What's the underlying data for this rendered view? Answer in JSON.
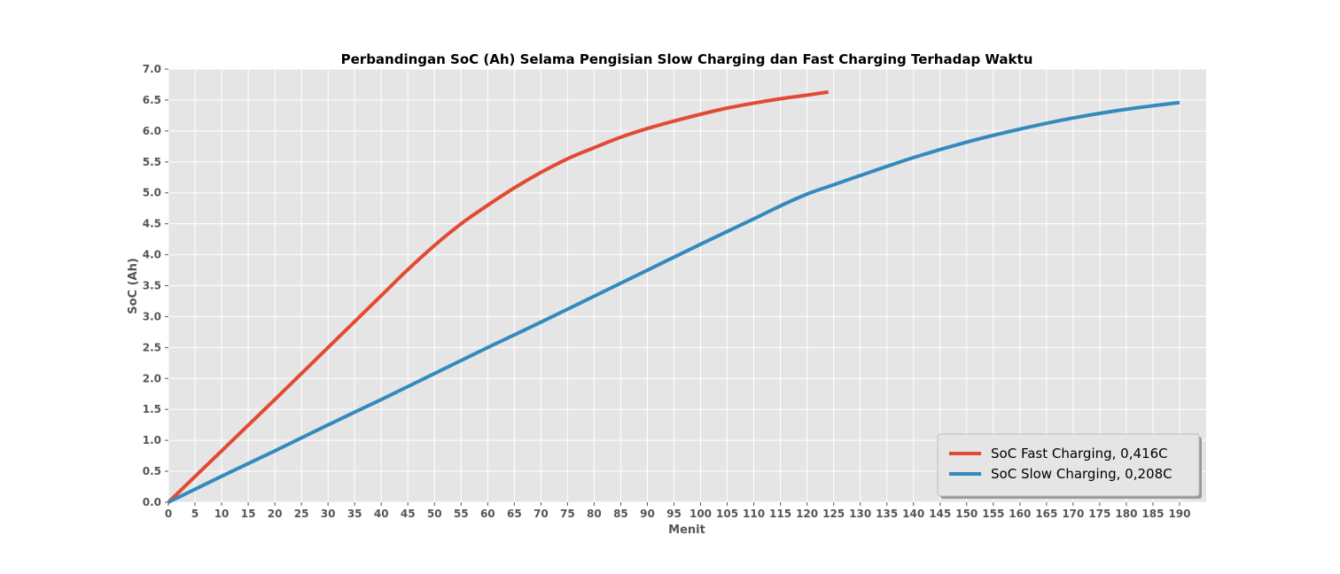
{
  "chart_data": {
    "type": "line",
    "title": "Perbandingan SoC (Ah) Selama Pengisian Slow Charging dan Fast Charging Terhadap Waktu",
    "xlabel": "Menit",
    "ylabel": "SoC (Ah)",
    "xlim": [
      0,
      195
    ],
    "ylim": [
      0,
      7
    ],
    "xticks": [
      "0",
      "5",
      "10",
      "15",
      "20",
      "25",
      "30",
      "35",
      "40",
      "45",
      "50",
      "55",
      "60",
      "65",
      "70",
      "75",
      "80",
      "85",
      "90",
      "95",
      "100",
      "105",
      "110",
      "115",
      "120",
      "125",
      "130",
      "135",
      "140",
      "145",
      "150",
      "155",
      "160",
      "165",
      "170",
      "175",
      "180",
      "185",
      "190"
    ],
    "yticks": [
      "0.0",
      "0.5",
      "1.0",
      "1.5",
      "2.0",
      "2.5",
      "3.0",
      "3.5",
      "4.0",
      "4.5",
      "5.0",
      "5.5",
      "6.0",
      "6.5",
      "7.0"
    ],
    "grid": true,
    "legend_position": "lower-right",
    "series": [
      {
        "name": "SoC Fast Charging, 0,416C",
        "color": "#E24A33",
        "x": [
          0,
          10,
          20,
          30,
          40,
          45,
          50,
          55,
          60,
          65,
          70,
          75,
          80,
          85,
          90,
          95,
          100,
          105,
          110,
          115,
          120,
          124
        ],
        "y": [
          0,
          0.83,
          1.66,
          2.5,
          3.34,
          3.76,
          4.15,
          4.5,
          4.8,
          5.08,
          5.33,
          5.55,
          5.73,
          5.9,
          6.04,
          6.16,
          6.27,
          6.37,
          6.45,
          6.52,
          6.58,
          6.63
        ]
      },
      {
        "name": "SoC Slow Charging, 0,208C",
        "color": "#348ABD",
        "x": [
          0,
          10,
          20,
          30,
          40,
          50,
          60,
          70,
          80,
          90,
          100,
          110,
          115,
          120,
          125,
          130,
          140,
          150,
          160,
          170,
          180,
          190
        ],
        "y": [
          0,
          0.42,
          0.83,
          1.25,
          1.66,
          2.08,
          2.5,
          2.91,
          3.33,
          3.75,
          4.17,
          4.58,
          4.79,
          4.98,
          5.13,
          5.28,
          5.57,
          5.82,
          6.03,
          6.21,
          6.35,
          6.46
        ]
      }
    ]
  }
}
